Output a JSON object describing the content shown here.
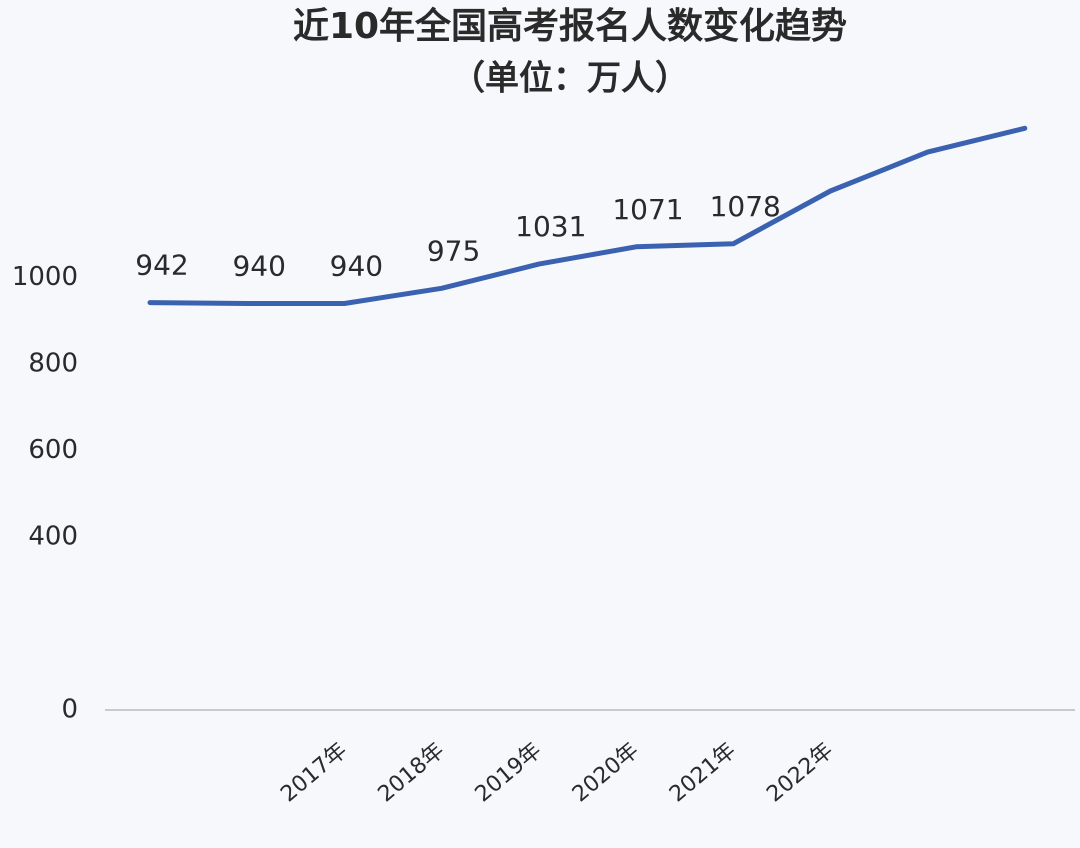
{
  "chart_data": {
    "type": "line",
    "title": "近10年全国高考报名人数变化趋势",
    "subtitle": "（单位：万人）",
    "categories": [
      null,
      null,
      "2017年",
      "2018年",
      "2019年",
      "2020年",
      "2021年",
      "2022年",
      null,
      null
    ],
    "values": [
      942,
      940,
      940,
      975,
      1031,
      1071,
      1078,
      1200,
      1290,
      1345
    ],
    "value_labels": [
      "942",
      "940",
      "940",
      "975",
      "1031",
      "1071",
      "1078",
      null,
      null,
      null
    ],
    "color": "#3a62b0",
    "ylim": [
      0,
      1400
    ],
    "yticks": [
      0,
      400,
      600,
      800,
      1000
    ],
    "grid": false
  }
}
